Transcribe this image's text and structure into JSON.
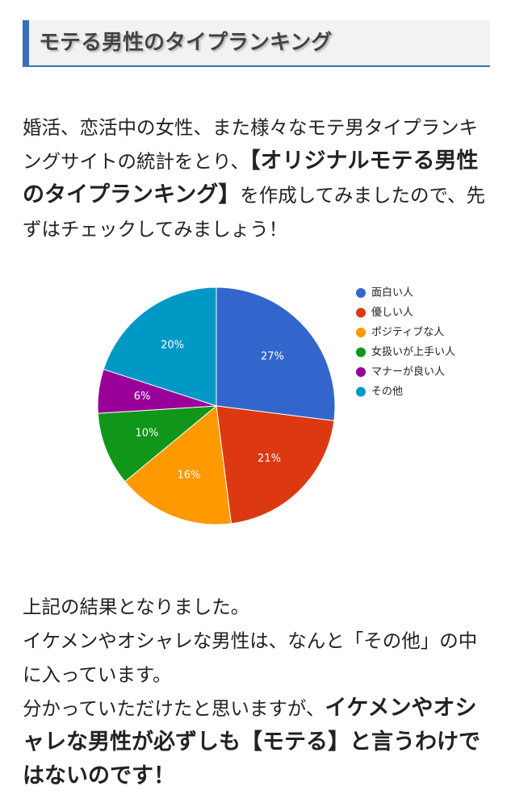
{
  "header": {
    "title": "モテる男性のタイプランキング"
  },
  "intro": {
    "before": "婚活、恋活中の女性、また様々なモテ男タイプランキングサイトの統計をとり、",
    "emphasis": "【オリジナルモテる男性のタイプランキング】",
    "after": "を作成してみましたので、先ずはチェックしてみましょう！"
  },
  "chart_data": {
    "type": "pie",
    "categories": [
      "面白い人",
      "優しい人",
      "ポジティブな人",
      "女扱いが上手い人",
      "マナーが良い人",
      "その他"
    ],
    "values": [
      27,
      21,
      16,
      10,
      6,
      20
    ],
    "value_labels": [
      "27%",
      "21%",
      "16%",
      "10%",
      "6%",
      "20%"
    ],
    "colors": [
      "#3366cc",
      "#dc3912",
      "#ff9900",
      "#109618",
      "#990099",
      "#0099c6"
    ]
  },
  "result": {
    "line1": "上記の結果となりました。",
    "line2": "イケメンやオシャレな男性は、なんと「その他」の中に入っています。",
    "line3": {
      "before": "分かっていただけたと思いますが、",
      "emphasis": "イケメンやオシャレな男性が必ずしも【モテる】と言うわけではないのです！"
    }
  }
}
